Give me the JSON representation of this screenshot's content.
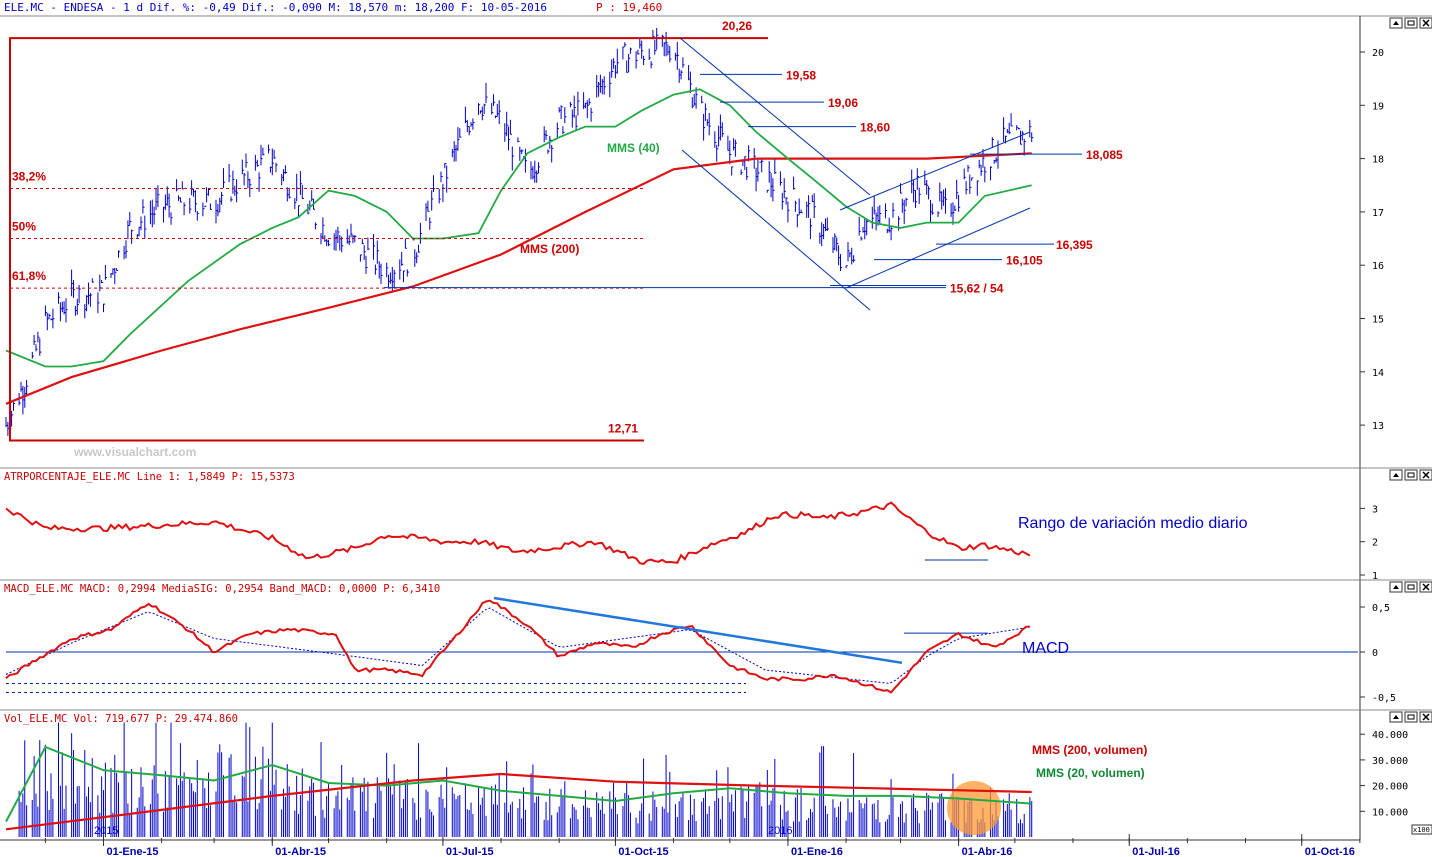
{
  "colors": {
    "price": "#0000cc",
    "mms200": "#dd1111",
    "mms40": "#22aa44",
    "level_red": "#cc0000",
    "guide_blue": "#0033aa",
    "macd_trend": "#2277dd",
    "panel_border": "#555555",
    "volume_highlight": "#ff9933"
  },
  "header": {
    "main": "ELE.MC - ENDESA -  1 d Dif. %: -0,49 Dif.: -0,090 M: 18,570 m: 18,200 F: 10-05-2016",
    "price_label": "P : 19,460"
  },
  "window_icons": [
    "scroll-up-icon",
    "minimize-icon",
    "close-icon"
  ],
  "watermark": "www.visualchart.com",
  "x_axis": {
    "labels": [
      "01-Ene-15",
      "01-Abr-15",
      "01-Jul-15",
      "01-Oct-15",
      "01-Ene-16",
      "01-Abr-16",
      "01-Jul-16",
      "01-Oct-16"
    ],
    "year_labels": [
      "2015",
      "2016"
    ],
    "vol_scale": "x100"
  },
  "chart_data": [
    {
      "type": "line",
      "title": "",
      "y_ticks": [
        "20",
        "19",
        "18",
        "17",
        "16",
        "15",
        "14",
        "13"
      ],
      "ylim": [
        12.5,
        20.7
      ],
      "x_range": [
        "2014-11-10",
        "2016-10-31"
      ],
      "series": [
        {
          "name": "",
          "style": "ohlc-bars",
          "x": [
            "2014-11-10",
            "2014-11-20",
            "2014-12-01",
            "2014-12-15",
            "2015-01-01",
            "2015-01-15",
            "2015-02-01",
            "2015-02-15",
            "2015-03-01",
            "2015-03-15",
            "2015-04-01",
            "2015-04-15",
            "2015-05-01",
            "2015-05-15",
            "2015-06-01",
            "2015-06-15",
            "2015-06-25",
            "2015-07-10",
            "2015-07-20",
            "2015-08-01",
            "2015-08-15",
            "2015-09-01",
            "2015-09-15",
            "2015-10-01",
            "2015-10-15",
            "2015-11-01",
            "2015-11-15",
            "2015-12-01",
            "2015-12-15",
            "2016-01-01",
            "2016-01-15",
            "2016-02-01",
            "2016-02-10",
            "2016-02-25",
            "2016-03-10",
            "2016-03-25",
            "2016-04-10",
            "2016-04-25",
            "2016-05-10"
          ],
          "values": [
            13.0,
            13.8,
            14.9,
            15.4,
            15.5,
            16.7,
            17.1,
            17.2,
            17.2,
            17.6,
            18.0,
            17.3,
            16.6,
            16.4,
            15.9,
            16.2,
            17.1,
            18.3,
            19.1,
            18.7,
            17.7,
            18.7,
            18.9,
            19.8,
            20.0,
            20.1,
            18.9,
            18.1,
            17.8,
            17.3,
            16.9,
            16.0,
            16.8,
            16.9,
            17.5,
            17.0,
            17.8,
            18.3,
            18.5
          ]
        },
        {
          "name": "MMS (40)",
          "x": [
            "2014-11-10",
            "2014-12-01",
            "2014-12-15",
            "2015-01-01",
            "2015-01-15",
            "2015-02-15",
            "2015-03-15",
            "2015-04-01",
            "2015-04-15",
            "2015-05-01",
            "2015-05-15",
            "2015-06-01",
            "2015-06-15",
            "2015-07-01",
            "2015-07-20",
            "2015-08-01",
            "2015-08-15",
            "2015-09-01",
            "2015-09-15",
            "2015-10-01",
            "2015-10-15",
            "2015-11-01",
            "2015-11-15",
            "2015-12-01",
            "2015-12-15",
            "2016-01-01",
            "2016-01-15",
            "2016-02-01",
            "2016-02-15",
            "2016-03-01",
            "2016-03-15",
            "2016-04-01",
            "2016-04-15",
            "2016-05-10"
          ],
          "values": [
            14.4,
            14.1,
            14.1,
            14.2,
            14.7,
            15.7,
            16.4,
            16.7,
            16.9,
            17.4,
            17.3,
            17.0,
            16.5,
            16.5,
            16.6,
            17.4,
            18.1,
            18.4,
            18.6,
            18.6,
            18.9,
            19.2,
            19.3,
            19.0,
            18.5,
            18.0,
            17.6,
            17.1,
            16.8,
            16.7,
            16.8,
            16.8,
            17.3,
            17.5
          ]
        },
        {
          "name": "MMS (200)",
          "x": [
            "2014-11-10",
            "2014-12-15",
            "2015-02-01",
            "2015-03-15",
            "2015-05-01",
            "2015-06-15",
            "2015-08-01",
            "2015-09-15",
            "2015-11-01",
            "2015-12-15",
            "2016-02-01",
            "2016-03-15",
            "2016-05-10"
          ],
          "values": [
            13.4,
            13.9,
            14.4,
            14.8,
            15.2,
            15.6,
            16.2,
            17.0,
            17.8,
            18.0,
            18.0,
            18.0,
            18.1
          ]
        }
      ],
      "levels": [
        {
          "label": "20,26",
          "value": 20.26
        },
        {
          "label": "19,58",
          "value": 19.58
        },
        {
          "label": "19,06",
          "value": 19.06
        },
        {
          "label": "18,60",
          "value": 18.6
        },
        {
          "label": "18,085",
          "value": 18.085
        },
        {
          "label": "16,395",
          "value": 16.395
        },
        {
          "label": "16,105",
          "value": 16.105
        },
        {
          "label": "15,62 / 54",
          "value": 15.58
        },
        {
          "label": "12,71",
          "value": 12.71
        }
      ],
      "fibonacci": [
        {
          "label": "38,2%",
          "value": 17.44
        },
        {
          "label": "50%",
          "value": 16.5
        },
        {
          "label": "61,8%",
          "value": 15.57
        }
      ],
      "series_labels": [
        "MMS (40)",
        "MMS (200)"
      ]
    },
    {
      "type": "line",
      "title": "ATRPORCENTAJE_ELE.MC Line 1: 1,5849 P: 15,5373",
      "annotation": "Rango de variación medio diario",
      "y_ticks": [
        "3",
        "2",
        "1"
      ],
      "ylim": [
        1.0,
        3.5
      ],
      "x_range": [
        "2014-11-10",
        "2016-10-31"
      ],
      "series": [
        {
          "name": "",
          "x": [
            "2014-11-10",
            "2014-12-01",
            "2015-01-01",
            "2015-02-01",
            "2015-03-01",
            "2015-04-01",
            "2015-04-20",
            "2015-05-15",
            "2015-06-01",
            "2015-06-20",
            "2015-07-01",
            "2015-07-20",
            "2015-08-10",
            "2015-08-25",
            "2015-09-20",
            "2015-10-15",
            "2015-11-01",
            "2015-11-20",
            "2015-12-10",
            "2015-12-25",
            "2016-01-10",
            "2016-01-20",
            "2016-02-10",
            "2016-02-25",
            "2016-03-15",
            "2016-04-01",
            "2016-04-15",
            "2016-05-10"
          ],
          "values": [
            3.0,
            2.4,
            2.4,
            2.5,
            2.6,
            2.1,
            1.5,
            1.8,
            2.2,
            2.1,
            2.0,
            2.0,
            1.7,
            1.8,
            2.0,
            1.4,
            1.4,
            1.9,
            2.3,
            2.8,
            2.8,
            2.7,
            2.9,
            3.1,
            2.3,
            1.8,
            1.9,
            1.6
          ]
        }
      ]
    },
    {
      "type": "line",
      "title": "MACD_ELE.MC MACD: 0,2994 MediaSIG: 0,2954 Band_MACD: 0,0000 P: 6,3410",
      "annotation": "MACD",
      "y_ticks": [
        "0,5",
        "0",
        "-0,5"
      ],
      "ylim": [
        -0.6,
        0.65
      ],
      "x_range": [
        "2014-11-10",
        "2016-10-31"
      ],
      "series": [
        {
          "name": "",
          "x": [
            "2014-11-10",
            "2014-11-25",
            "2014-12-15",
            "2015-01-05",
            "2015-01-25",
            "2015-02-15",
            "2015-03-01",
            "2015-03-20",
            "2015-04-10",
            "2015-05-05",
            "2015-05-15",
            "2015-06-01",
            "2015-06-20",
            "2015-07-05",
            "2015-07-25",
            "2015-08-15",
            "2015-09-01",
            "2015-09-20",
            "2015-10-10",
            "2015-10-25",
            "2015-11-10",
            "2015-12-01",
            "2015-12-20",
            "2016-01-10",
            "2016-01-25",
            "2016-02-10",
            "2016-02-25",
            "2016-03-15",
            "2016-04-01",
            "2016-04-20",
            "2016-05-10"
          ],
          "values": [
            -0.3,
            -0.1,
            0.15,
            0.25,
            0.55,
            0.25,
            0.0,
            0.2,
            0.25,
            0.2,
            -0.2,
            -0.2,
            -0.25,
            0.1,
            0.6,
            0.3,
            -0.05,
            0.1,
            0.05,
            0.2,
            0.3,
            -0.15,
            -0.3,
            -0.3,
            -0.25,
            -0.35,
            -0.45,
            0.0,
            0.2,
            0.05,
            0.3
          ]
        },
        {
          "name": "",
          "x": [
            "2014-11-10",
            "2014-12-15",
            "2015-01-25",
            "2015-03-01",
            "2015-05-15",
            "2015-06-20",
            "2015-07-25",
            "2015-09-01",
            "2015-11-10",
            "2015-12-20",
            "2016-02-25",
            "2016-03-15",
            "2016-04-01",
            "2016-05-10"
          ],
          "values": [
            -0.25,
            0.1,
            0.45,
            0.15,
            -0.05,
            -0.15,
            0.5,
            0.05,
            0.25,
            -0.2,
            -0.35,
            -0.05,
            0.15,
            0.28
          ]
        }
      ]
    },
    {
      "type": "bar",
      "title": "Vol_ELE.MC Vol: 719.677 P: 29.474.860",
      "y_ticks": [
        "40.000",
        "30.000",
        "20.000",
        "10.000"
      ],
      "ylim": [
        0,
        45000
      ],
      "x_range": [
        "2014-11-10",
        "2016-10-31"
      ],
      "series": [
        {
          "name": "",
          "x": [
            "2014-11-15",
            "2014-12-15",
            "2015-01-15",
            "2015-02-15",
            "2015-03-15",
            "2015-04-15",
            "2015-05-15",
            "2015-06-15",
            "2015-07-15",
            "2015-08-15",
            "2015-09-15",
            "2015-10-15",
            "2015-11-15",
            "2015-12-15",
            "2016-01-15",
            "2016-02-15",
            "2016-03-15",
            "2016-04-15",
            "2016-05-05"
          ],
          "values": [
            32000,
            28000,
            25000,
            24000,
            29000,
            22000,
            19000,
            18000,
            17000,
            16000,
            15000,
            14500,
            16000,
            17500,
            16500,
            15000,
            15000,
            14000,
            14000
          ]
        },
        {
          "name": "MMS (200, volumen)",
          "x": [
            "2014-11-10",
            "2015-01-15",
            "2015-04-01",
            "2015-06-15",
            "2015-08-01",
            "2015-10-01",
            "2015-12-15",
            "2016-02-15",
            "2016-05-10"
          ],
          "values": [
            3000,
            9000,
            16000,
            22000,
            24500,
            21500,
            20000,
            19000,
            17500
          ]
        },
        {
          "name": "MMS (20, volumen)",
          "x": [
            "2014-11-10",
            "2014-12-01",
            "2015-01-01",
            "2015-02-01",
            "2015-03-01",
            "2015-04-01",
            "2015-05-01",
            "2015-06-01",
            "2015-07-01",
            "2015-08-01",
            "2015-09-01",
            "2015-10-01",
            "2015-11-01",
            "2015-12-01",
            "2016-01-01",
            "2016-02-01",
            "2016-03-01",
            "2016-04-01",
            "2016-05-10"
          ],
          "values": [
            6000,
            35000,
            26000,
            24000,
            22000,
            28000,
            21000,
            20000,
            22000,
            18000,
            16000,
            14000,
            17000,
            19000,
            17000,
            16000,
            16000,
            15000,
            13000
          ]
        }
      ]
    }
  ]
}
